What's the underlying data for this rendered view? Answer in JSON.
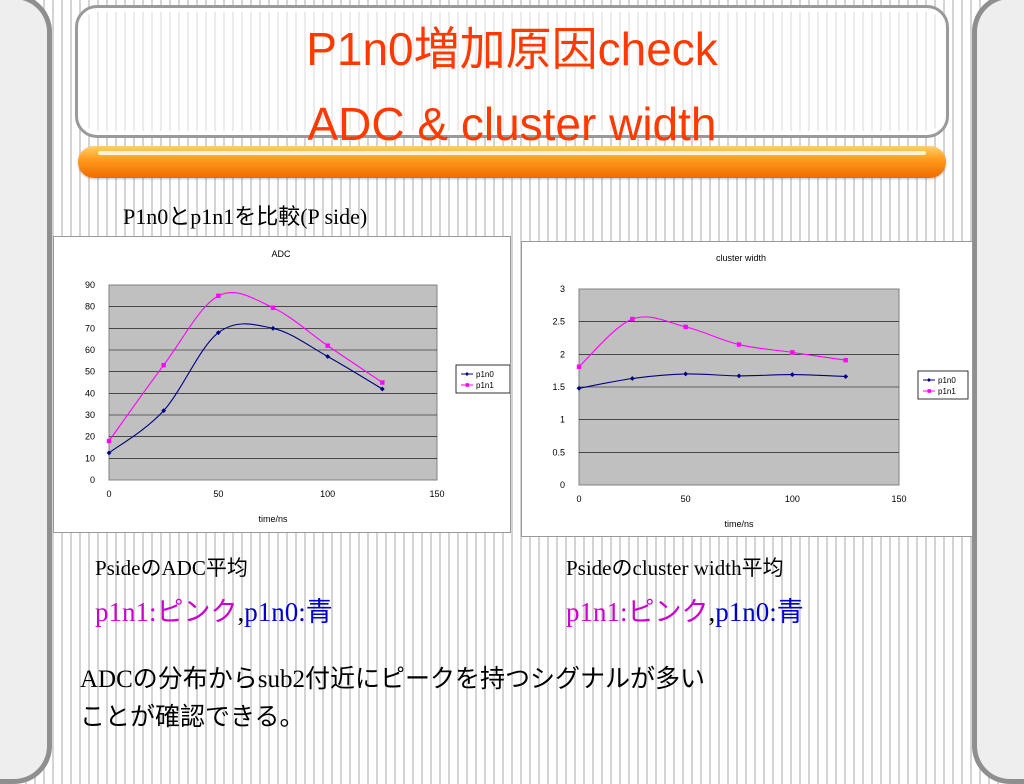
{
  "slide": {
    "title_line1": "P1n0増加原因check",
    "title_line2": "ADC & cluster width",
    "subheading": "P1n0とp1n1を比較(P side)",
    "caption_adc": "PsideのADC平均",
    "caption_cw": "Psideのcluster width平均",
    "legend_adc": {
      "p1n1": "p1n1:ピンク",
      "sep": ",",
      "p1n0": "p1n0:青"
    },
    "legend_cw": {
      "p1n1": "p1n1:ピンク",
      "sep": ",",
      "p1n0": "p1n0:青"
    },
    "note_line1": "ADCの分布からsub2付近にピークを持つシグナルが多い",
    "note_line2": "ことが確認できる。"
  },
  "colors": {
    "title": "#ff3a00",
    "accent_bar": "#ff9d1e",
    "plot_area": "#c0c0c0",
    "p1n0_series": "#000080",
    "p1n1_series": "#ff00ff",
    "pink_text": "#cc00cc",
    "blue_text": "#0000cc"
  },
  "chart_data": [
    {
      "type": "line",
      "title": "ADC",
      "xlabel": "time/ns",
      "ylabel": "",
      "xlim": [
        0,
        150
      ],
      "ylim": [
        0,
        90
      ],
      "xticks": [
        0,
        50,
        100,
        150
      ],
      "yticks": [
        0,
        10,
        20,
        30,
        40,
        50,
        60,
        70,
        80,
        90
      ],
      "grid": true,
      "legend": "right",
      "smooth": true,
      "series": [
        {
          "name": "p1n0",
          "color": "#000080",
          "marker": "diamond",
          "x": [
            0,
            25,
            50,
            75,
            100,
            125
          ],
          "y": [
            12.5,
            32,
            68,
            70,
            57,
            42
          ]
        },
        {
          "name": "p1n1",
          "color": "#ff00ff",
          "marker": "square",
          "x": [
            0,
            25,
            50,
            75,
            100,
            125
          ],
          "y": [
            18,
            53,
            85,
            79.5,
            62,
            45
          ]
        }
      ]
    },
    {
      "type": "line",
      "title": "cluster width",
      "xlabel": "time/ns",
      "ylabel": "",
      "xlim": [
        0,
        150
      ],
      "ylim": [
        0,
        3
      ],
      "xticks": [
        0,
        50,
        100,
        150
      ],
      "yticks": [
        0,
        0.5,
        1,
        1.5,
        2,
        2.5,
        3
      ],
      "grid": true,
      "legend": "right",
      "smooth": true,
      "series": [
        {
          "name": "p1n0",
          "color": "#000080",
          "marker": "diamond",
          "x": [
            0,
            25,
            50,
            75,
            100,
            125
          ],
          "y": [
            1.48,
            1.63,
            1.7,
            1.67,
            1.69,
            1.66
          ]
        },
        {
          "name": "p1n1",
          "color": "#ff00ff",
          "marker": "square",
          "x": [
            0,
            25,
            50,
            75,
            100,
            125
          ],
          "y": [
            1.81,
            2.54,
            2.42,
            2.15,
            2.03,
            1.91
          ]
        }
      ]
    }
  ]
}
